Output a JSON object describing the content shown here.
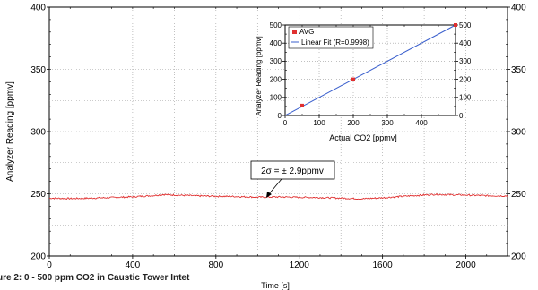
{
  "caption": "ure 2: 0 - 500 ppm CO2 in Caustic Tower Intet",
  "chart_data": [
    {
      "type": "line",
      "title": "",
      "xlabel": "Time [s]",
      "ylabel": "Analyzer Reading [ppmv]",
      "xlim": [
        0,
        2200
      ],
      "ylim": [
        200,
        400
      ],
      "x_ticks": [
        "0",
        "400",
        "800",
        "1200",
        "1600",
        "2000"
      ],
      "y_ticks": [
        "200",
        "250",
        "300",
        "350",
        "400"
      ],
      "y2_ticks": [
        "200",
        "250",
        "300",
        "350",
        "400"
      ],
      "grid": true,
      "series_color": "#e03030",
      "series": [
        {
          "x": [
            0,
            100,
            200,
            300,
            400,
            500,
            550,
            600,
            700,
            800,
            900,
            1000,
            1100,
            1200,
            1300,
            1400,
            1500,
            1600,
            1700,
            1800,
            1850,
            1900,
            2000,
            2100,
            2200
          ],
          "values": [
            246.5,
            246.2,
            246.5,
            247.0,
            247.6,
            248.6,
            249.4,
            249.0,
            248.4,
            248.0,
            247.8,
            247.3,
            247.5,
            247.2,
            247.0,
            246.5,
            246.0,
            246.8,
            248.0,
            249.0,
            249.5,
            249.3,
            249.0,
            248.5,
            248.3
          ]
        }
      ],
      "annotation": "2σ = ± 2.9ppmv"
    },
    {
      "type": "scatter",
      "title": "",
      "xlabel": "Actual CO2 [ppmv]",
      "ylabel": "Analyzer Reading [ppmv]",
      "xlim": [
        0,
        500
      ],
      "ylim": [
        0,
        500
      ],
      "x_ticks": [
        "0",
        "100",
        "200",
        "300",
        "400"
      ],
      "y_ticks": [
        "0",
        "100",
        "200",
        "300",
        "400",
        "500"
      ],
      "y2_ticks": [
        "0",
        "100",
        "200",
        "300",
        "400",
        "500"
      ],
      "grid": true,
      "legend_position": "top-left",
      "marker_color": "#e03030",
      "fit_color": "#3a5fcd",
      "series": [
        {
          "name": "AVG",
          "x": [
            50,
            200,
            500
          ],
          "values": [
            55,
            200,
            500
          ]
        },
        {
          "name": "Linear Fit (R=0.9998)",
          "x": [
            0,
            500
          ],
          "values": [
            0,
            500
          ]
        }
      ]
    }
  ]
}
